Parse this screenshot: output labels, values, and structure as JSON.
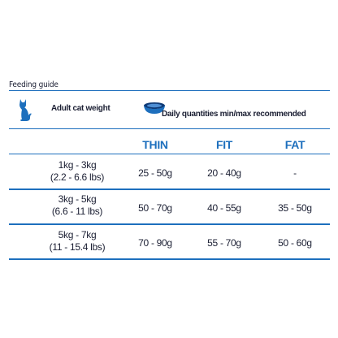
{
  "title": "Feeding guide",
  "header": {
    "weight_label": "Adult cat weight",
    "quantity_label": "Daily quantities min/max recommended"
  },
  "columns": [
    "THIN",
    "FIT",
    "FAT"
  ],
  "rows": [
    {
      "weight_kg": "1kg - 3kg",
      "weight_lbs": "(2.2 - 6.6 lbs)",
      "values": [
        "25 - 50g",
        "20 - 40g",
        "-"
      ]
    },
    {
      "weight_kg": "3kg - 5kg",
      "weight_lbs": "(6.6 - 11 lbs)",
      "values": [
        "50 - 70g",
        "40 - 55g",
        "35 - 50g"
      ]
    },
    {
      "weight_kg": "5kg - 7kg",
      "weight_lbs": "(11 - 15.4 lbs)",
      "values": [
        "70 - 90g",
        "55 - 70g",
        "50 - 60g"
      ]
    }
  ],
  "colors": {
    "accent": "#1d6fbd",
    "text": "#1b1f33"
  },
  "icons": [
    "cat-icon",
    "food-bowl-icon"
  ]
}
